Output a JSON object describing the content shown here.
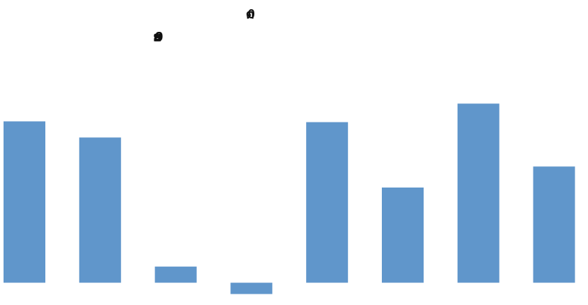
{
  "overlap_text": {
    "top_glyphs": "ต0",
    "mid_glyphs": "ยย99"
  },
  "chart_data": {
    "type": "bar",
    "title": "",
    "xlabel": "",
    "ylabel": "",
    "categories": [
      "",
      "",
      "",
      "",
      "",
      "",
      "",
      ""
    ],
    "series": [
      {
        "values": [
          100,
          90,
          10,
          -7,
          99.5,
          59,
          111,
          72
        ]
      }
    ],
    "ylim": [
      -10,
      120
    ],
    "grid": false,
    "legend": "none",
    "color": "#6096cb"
  }
}
